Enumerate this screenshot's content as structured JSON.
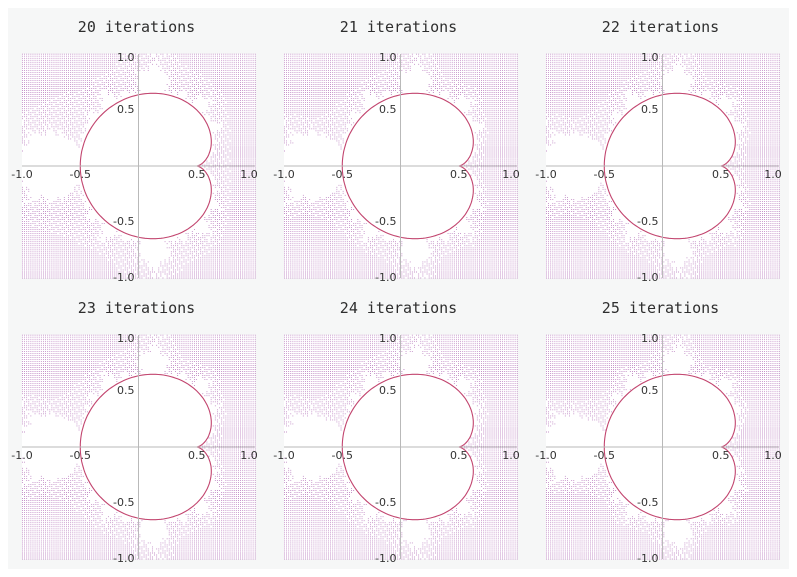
{
  "colors": {
    "figure_background": "#f6f7f7",
    "plot_background": "#ffffff",
    "point_color": "#8b2591",
    "boundary_color": "#c2456f",
    "axis_color": "#b9b9b9"
  },
  "chart_data": [
    {
      "type": "scatter",
      "title": "20 iterations",
      "iterations": 20,
      "xlim": [
        -1.0,
        1.0
      ],
      "ylim": [
        -1.0,
        1.0
      ],
      "x_ticks": [
        "-1.0",
        "-0.5",
        "0.5",
        "1.0"
      ],
      "y_ticks": [
        "1.0",
        "0.5",
        "-0.5",
        "-1.0"
      ],
      "legend": "none",
      "grid": false
    },
    {
      "type": "scatter",
      "title": "21 iterations",
      "iterations": 21,
      "xlim": [
        -1.0,
        1.0
      ],
      "ylim": [
        -1.0,
        1.0
      ],
      "x_ticks": [
        "-1.0",
        "-0.5",
        "0.5",
        "1.0"
      ],
      "y_ticks": [
        "1.0",
        "0.5",
        "-0.5",
        "-1.0"
      ],
      "legend": "none",
      "grid": false
    },
    {
      "type": "scatter",
      "title": "22 iterations",
      "iterations": 22,
      "xlim": [
        -1.0,
        1.0
      ],
      "ylim": [
        -1.0,
        1.0
      ],
      "x_ticks": [
        "-1.0",
        "-0.5",
        "0.5",
        "1.0"
      ],
      "y_ticks": [
        "1.0",
        "0.5",
        "-0.5",
        "-1.0"
      ],
      "legend": "none",
      "grid": false
    },
    {
      "type": "scatter",
      "title": "23 iterations",
      "iterations": 23,
      "xlim": [
        -1.0,
        1.0
      ],
      "ylim": [
        -1.0,
        1.0
      ],
      "x_ticks": [
        "-1.0",
        "-0.5",
        "0.5",
        "1.0"
      ],
      "y_ticks": [
        "1.0",
        "0.5",
        "-0.5",
        "-1.0"
      ],
      "legend": "none",
      "grid": false
    },
    {
      "type": "scatter",
      "title": "24 iterations",
      "iterations": 24,
      "xlim": [
        -1.0,
        1.0
      ],
      "ylim": [
        -1.0,
        1.0
      ],
      "x_ticks": [
        "-1.0",
        "-0.5",
        "0.5",
        "1.0"
      ],
      "y_ticks": [
        "1.0",
        "0.5",
        "-0.5",
        "-1.0"
      ],
      "legend": "none",
      "grid": false
    },
    {
      "type": "scatter",
      "title": "25 iterations",
      "iterations": 25,
      "xlim": [
        -1.0,
        1.0
      ],
      "ylim": [
        -1.0,
        1.0
      ],
      "x_ticks": [
        "-1.0",
        "-0.5",
        "0.5",
        "1.0"
      ],
      "y_ticks": [
        "1.0",
        "0.5",
        "-0.5",
        "-1.0"
      ],
      "legend": "none",
      "grid": false
    }
  ]
}
